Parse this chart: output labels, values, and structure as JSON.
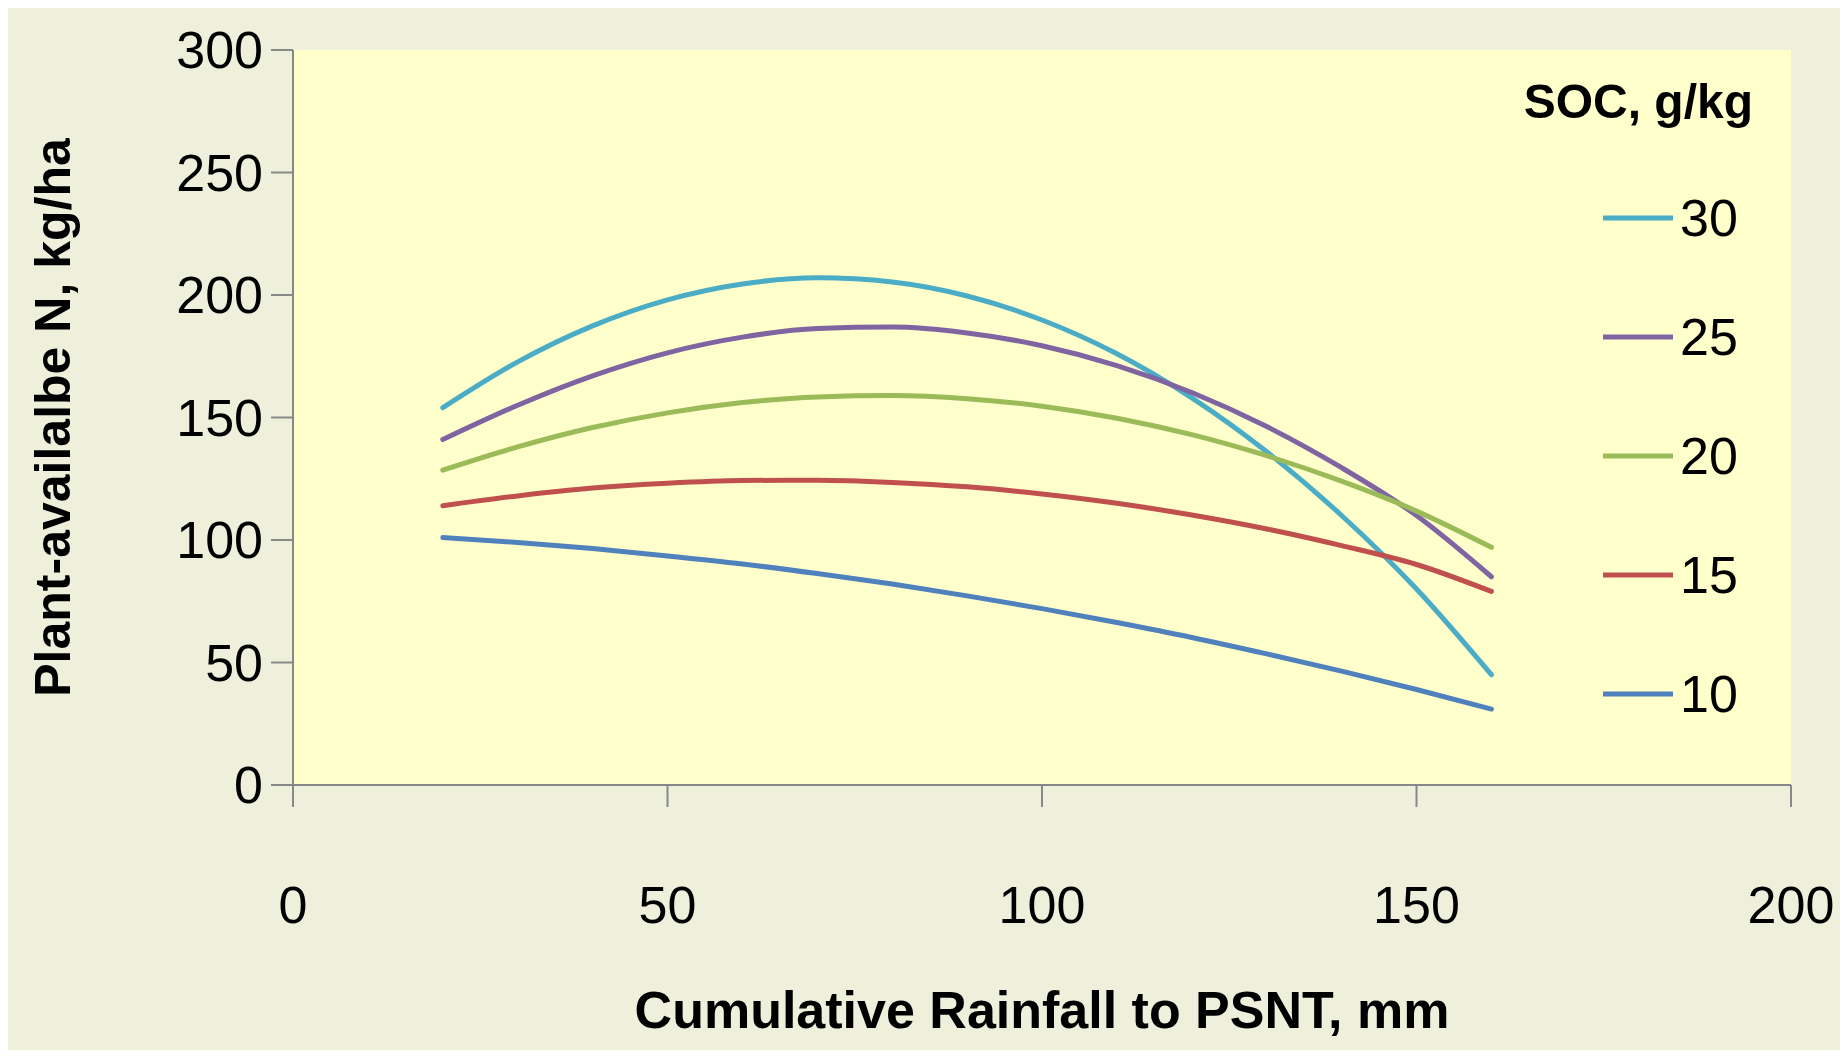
{
  "chart_data": {
    "type": "line",
    "xlabel": "Cumulative Rainfall to PSNT, mm",
    "ylabel": "Plant-availalbe N, kg/ha",
    "legend_title": "SOC, g/kg",
    "legend": "right",
    "grid": false,
    "marker": "none",
    "line_style": "solid",
    "xlim": [
      0,
      200
    ],
    "xticks": [
      0,
      50,
      100,
      150,
      200
    ],
    "ylim": [
      0,
      300
    ],
    "yticks": [
      0,
      50,
      100,
      150,
      200,
      250,
      300
    ],
    "x": [
      20,
      30,
      40,
      50,
      60,
      70,
      80,
      90,
      100,
      110,
      120,
      130,
      140,
      150,
      160
    ],
    "series": [
      {
        "name": "30",
        "color": "#4bacc6",
        "values": [
          154,
          172.7,
          187.4,
          198,
          204.5,
          207,
          205.3,
          199.6,
          189.8,
          176,
          158,
          136,
          110,
          80,
          45
        ]
      },
      {
        "name": "25",
        "color": "#8064a2",
        "values": [
          141,
          155,
          167,
          176.4,
          182.8,
          186.3,
          186.9,
          184.5,
          179.3,
          171.2,
          160.2,
          146.3,
          129.5,
          110,
          85
        ]
      },
      {
        "name": "20",
        "color": "#9bbb59",
        "values": [
          128.5,
          138,
          145.9,
          151.9,
          156.1,
          158.4,
          159,
          157.7,
          154.6,
          149.7,
          143,
          134.4,
          124,
          111.8,
          97
        ]
      },
      {
        "name": "15",
        "color": "#c0504d",
        "values": [
          114,
          118,
          121.2,
          123.2,
          124.3,
          124.4,
          123.5,
          121.7,
          118.8,
          115,
          110.2,
          104.5,
          97.7,
          90,
          79
        ]
      },
      {
        "name": "10",
        "color": "#4f81bd",
        "values": [
          101,
          99,
          96.5,
          93.5,
          90.2,
          86.3,
          82,
          77.2,
          72,
          66.3,
          60.2,
          53.5,
          46.5,
          39,
          31
        ]
      }
    ]
  }
}
